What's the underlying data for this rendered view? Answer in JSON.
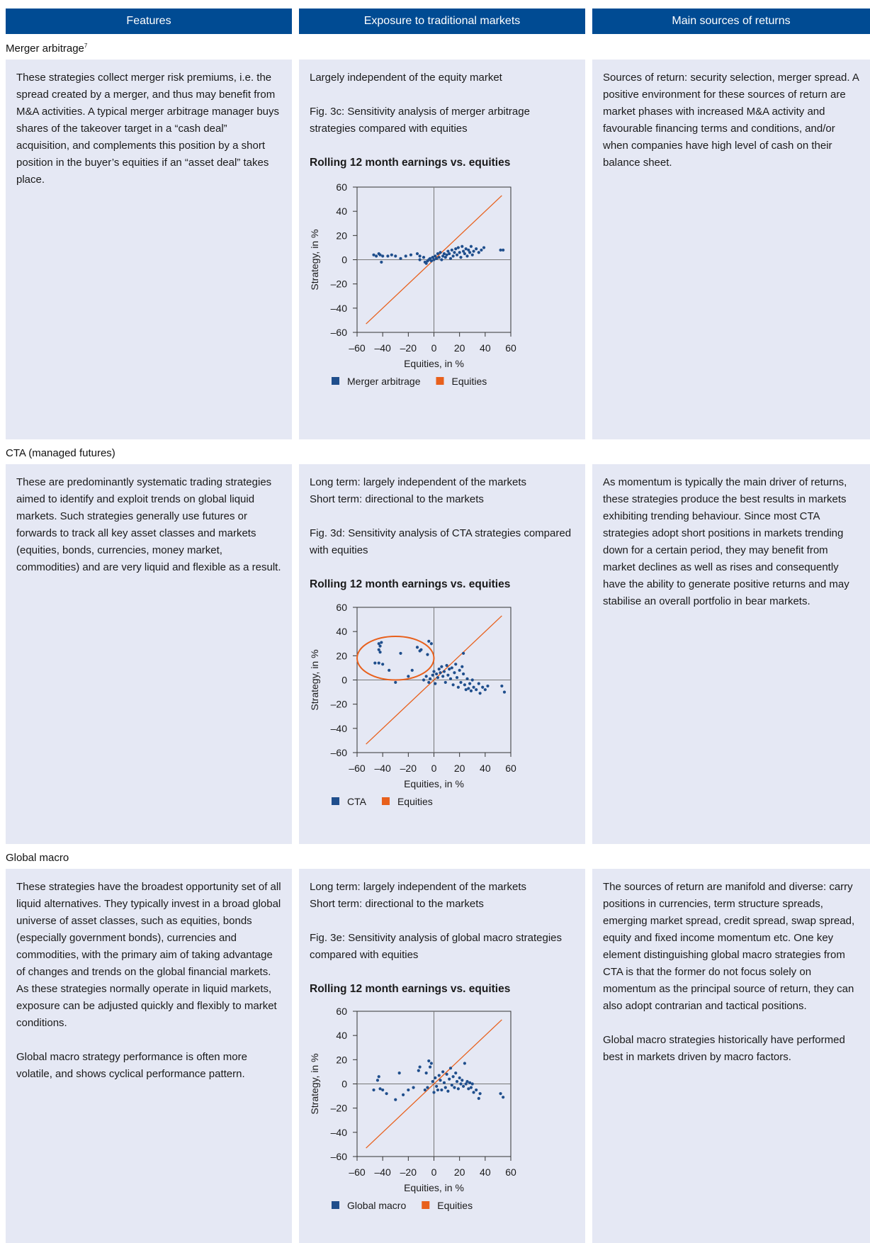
{
  "headers": [
    "Features",
    "Exposure to traditional markets",
    "Main sources of returns"
  ],
  "sections": [
    {
      "title": "Merger arbitrage",
      "title_sup": "7",
      "features": [
        "These strategies collect merger risk premiums, i.e. the spread created by a merger, and thus may benefit from M&A activities. A typical merger arbitrage manager buys shares of the takeover target in a “cash deal” acquisition, and complements this position by a short position in the buyer’s equities if an “asset deal” takes place."
      ],
      "exposure": "Largely independent of the equity market",
      "figure_caption": "Fig. 3c: Sensitivity analysis of merger arbitrage strategies compared with equities",
      "chart_title": "Rolling 12 month earnings vs. equities",
      "sources": [
        "Sources of return: security selection, merger spread. A positive environment for these sources of return are market phases with increased M&A activity and favourable financing terms and conditions, and/or when companies have high level of cash on their balance sheet."
      ]
    },
    {
      "title": "CTA (managed futures)",
      "title_sup": "",
      "features": [
        "These are predominantly systematic trading strategies aimed to identify and exploit trends on global liquid markets. Such strategies generally use futures or forwards to track all key asset classes and markets (equities, bonds, currencies, money market, commodities) and are very liquid and flexible as a result."
      ],
      "exposure": "Long term: largely independent of the markets\nShort term: directional to the markets",
      "figure_caption": "Fig. 3d: Sensitivity analysis of CTA strategies compared with equities",
      "chart_title": "Rolling 12 month earnings vs. equities",
      "sources": [
        "As momentum is typically the main driver of returns, these strategies produce the best results in markets exhibiting trending behaviour. Since most CTA strategies adopt short positions in markets trending down for a certain period, they may benefit from market declines as well as rises and consequently have the ability to generate positive returns and may stabilise an overall portfolio in bear markets."
      ]
    },
    {
      "title": "Global macro",
      "title_sup": "",
      "features": [
        "These strategies have the broadest opportunity set of all liquid alternatives. They typically invest in a broad global universe of asset classes, such as equities, bonds (especially government bonds), currencies and commodities, with the primary aim of taking advantage of changes and trends on the global financial markets. As these strategies normally operate in liquid markets, exposure can be adjusted quickly and flexibly to market conditions.",
        "Global macro strategy performance is often more volatile, and shows cyclical performance pattern."
      ],
      "exposure": "Long term: largely independent of the markets\nShort term: directional to the markets",
      "figure_caption": "Fig. 3e: Sensitivity analysis of global macro strategies compared with equities",
      "chart_title": "Rolling 12 month earnings vs. equities",
      "sources": [
        "The sources of return are manifold and diverse: carry positions in currencies, term structure spreads, emerging market spread, credit spread, swap spread, equity and fixed income momentum etc. One key element distinguishing global macro strategies from CTA is that the former do not focus solely on momentum as the principal source of return, they can also adopt contrarian and tactical positions.",
        "Global macro strategies historically have performed best in markets driven by macro factors."
      ]
    }
  ],
  "colors": {
    "header": "#004b93",
    "panel": "#e5e8f4",
    "points": "#1f4e8c",
    "equities": "#e8601c"
  },
  "chart_data": [
    {
      "type": "scatter",
      "title": "Rolling 12 month earnings vs. equities",
      "xlabel": "Equities, in %",
      "ylabel": "Strategy, in %",
      "xlim": [
        -60,
        60
      ],
      "ylim": [
        -60,
        60
      ],
      "xticks": [
        "–60",
        "–40",
        "–20",
        "0",
        "20",
        "40",
        "60"
      ],
      "yticks": [
        "60",
        "40",
        "20",
        "0",
        "–20",
        "–40",
        "–60"
      ],
      "legend": [
        "Merger arbitrage",
        "Equities"
      ],
      "series": [
        {
          "name": "Merger arbitrage",
          "points": [
            [
              -47,
              4
            ],
            [
              -45,
              3
            ],
            [
              -43,
              5
            ],
            [
              -42,
              4
            ],
            [
              -41,
              -2
            ],
            [
              -40,
              3
            ],
            [
              -36,
              3
            ],
            [
              -33,
              4
            ],
            [
              -30,
              3
            ],
            [
              -26,
              1
            ],
            [
              -22,
              3
            ],
            [
              -18,
              4
            ],
            [
              -13,
              5
            ],
            [
              -11,
              0
            ],
            [
              -11,
              3
            ],
            [
              -8,
              2
            ],
            [
              -7,
              -2
            ],
            [
              -6,
              -3
            ],
            [
              -5,
              -1
            ],
            [
              -4,
              0
            ],
            [
              -3,
              1
            ],
            [
              -2,
              -1
            ],
            [
              -1,
              2
            ],
            [
              0,
              0
            ],
            [
              1,
              3
            ],
            [
              2,
              1
            ],
            [
              3,
              5
            ],
            [
              4,
              2
            ],
            [
              5,
              6
            ],
            [
              6,
              0
            ],
            [
              7,
              3
            ],
            [
              8,
              5
            ],
            [
              9,
              2
            ],
            [
              10,
              4
            ],
            [
              11,
              7
            ],
            [
              12,
              5
            ],
            [
              13,
              1
            ],
            [
              14,
              8
            ],
            [
              15,
              3
            ],
            [
              16,
              6
            ],
            [
              17,
              9
            ],
            [
              18,
              4
            ],
            [
              19,
              10
            ],
            [
              20,
              6
            ],
            [
              21,
              2
            ],
            [
              22,
              11
            ],
            [
              23,
              7
            ],
            [
              24,
              5
            ],
            [
              25,
              9
            ],
            [
              26,
              3
            ],
            [
              27,
              8
            ],
            [
              28,
              6
            ],
            [
              29,
              11
            ],
            [
              30,
              4
            ],
            [
              31,
              7
            ],
            [
              33,
              9
            ],
            [
              35,
              6
            ],
            [
              37,
              8
            ],
            [
              39,
              10
            ],
            [
              52,
              8
            ],
            [
              54,
              8
            ]
          ]
        },
        {
          "name": "Equities",
          "points": [
            [
              -53,
              -53
            ],
            [
              53,
              53
            ]
          ]
        }
      ]
    },
    {
      "type": "scatter",
      "title": "Rolling 12 month earnings vs. equities",
      "xlabel": "Equities, in %",
      "ylabel": "Strategy, in %",
      "xlim": [
        -60,
        60
      ],
      "ylim": [
        -60,
        60
      ],
      "xticks": [
        "–60",
        "–40",
        "–20",
        "0",
        "20",
        "40",
        "60"
      ],
      "yticks": [
        "60",
        "40",
        "20",
        "0",
        "–20",
        "–40",
        "–60"
      ],
      "legend": [
        "CTA",
        "Equities"
      ],
      "annotation": {
        "type": "ellipse",
        "cx": -30,
        "cy": 18,
        "rx": 30,
        "ry": 18
      },
      "series": [
        {
          "name": "CTA",
          "points": [
            [
              -43,
              30
            ],
            [
              -42,
              28
            ],
            [
              -41,
              31
            ],
            [
              -43,
              25
            ],
            [
              -42,
              23
            ],
            [
              -46,
              14
            ],
            [
              -43,
              14
            ],
            [
              -40,
              13
            ],
            [
              -35,
              8
            ],
            [
              -30,
              -2
            ],
            [
              -26,
              22
            ],
            [
              -20,
              3
            ],
            [
              -17,
              8
            ],
            [
              -13,
              27
            ],
            [
              -11,
              24
            ],
            [
              -10,
              25
            ],
            [
              -5,
              21
            ],
            [
              -4,
              32
            ],
            [
              -2,
              30
            ],
            [
              -8,
              0
            ],
            [
              -6,
              3
            ],
            [
              -4,
              -2
            ],
            [
              -3,
              1
            ],
            [
              -1,
              4
            ],
            [
              0,
              7
            ],
            [
              1,
              -3
            ],
            [
              2,
              5
            ],
            [
              3,
              2
            ],
            [
              4,
              9
            ],
            [
              5,
              6
            ],
            [
              6,
              11
            ],
            [
              7,
              3
            ],
            [
              8,
              7
            ],
            [
              9,
              -2
            ],
            [
              10,
              12
            ],
            [
              11,
              4
            ],
            [
              12,
              9
            ],
            [
              13,
              1
            ],
            [
              14,
              10
            ],
            [
              15,
              -4
            ],
            [
              16,
              6
            ],
            [
              17,
              13
            ],
            [
              18,
              2
            ],
            [
              19,
              -6
            ],
            [
              20,
              8
            ],
            [
              21,
              -2
            ],
            [
              22,
              11
            ],
            [
              23,
              5
            ],
            [
              24,
              -4
            ],
            [
              25,
              -8
            ],
            [
              26,
              1
            ],
            [
              27,
              -7
            ],
            [
              28,
              -3
            ],
            [
              29,
              -9
            ],
            [
              30,
              0
            ],
            [
              31,
              -6
            ],
            [
              33,
              -8
            ],
            [
              35,
              -3
            ],
            [
              36,
              -11
            ],
            [
              38,
              -6
            ],
            [
              40,
              -8
            ],
            [
              42,
              -5
            ],
            [
              23,
              22
            ],
            [
              53,
              -5
            ],
            [
              55,
              -10
            ]
          ]
        },
        {
          "name": "Equities",
          "points": [
            [
              -53,
              -53
            ],
            [
              53,
              53
            ]
          ]
        }
      ]
    },
    {
      "type": "scatter",
      "title": "Rolling 12 month earnings vs. equities",
      "xlabel": "Equities, in %",
      "ylabel": "Strategy, in %",
      "xlim": [
        -60,
        60
      ],
      "ylim": [
        -60,
        60
      ],
      "xticks": [
        "–60",
        "–40",
        "–20",
        "0",
        "20",
        "40",
        "60"
      ],
      "yticks": [
        "60",
        "40",
        "20",
        "0",
        "–20",
        "–40",
        "–60"
      ],
      "legend": [
        "Global macro",
        "Equities"
      ],
      "series": [
        {
          "name": "Global macro",
          "points": [
            [
              -47,
              -5
            ],
            [
              -44,
              3
            ],
            [
              -43,
              6
            ],
            [
              -42,
              -4
            ],
            [
              -40,
              -5
            ],
            [
              -37,
              -8
            ],
            [
              -30,
              -13
            ],
            [
              -27,
              9
            ],
            [
              -24,
              -9
            ],
            [
              -20,
              -5
            ],
            [
              -16,
              -3
            ],
            [
              -12,
              11
            ],
            [
              -11,
              14
            ],
            [
              -7,
              -5
            ],
            [
              -6,
              9
            ],
            [
              -5,
              -3
            ],
            [
              -4,
              19
            ],
            [
              -3,
              14
            ],
            [
              -2,
              17
            ],
            [
              -1,
              2
            ],
            [
              0,
              -7
            ],
            [
              1,
              5
            ],
            [
              2,
              -2
            ],
            [
              3,
              -5
            ],
            [
              4,
              7
            ],
            [
              5,
              3
            ],
            [
              6,
              -5
            ],
            [
              7,
              10
            ],
            [
              8,
              1
            ],
            [
              9,
              -3
            ],
            [
              10,
              8
            ],
            [
              11,
              -6
            ],
            [
              12,
              4
            ],
            [
              13,
              13
            ],
            [
              14,
              -1
            ],
            [
              15,
              6
            ],
            [
              16,
              -3
            ],
            [
              17,
              9
            ],
            [
              18,
              2
            ],
            [
              19,
              -4
            ],
            [
              20,
              5
            ],
            [
              21,
              0
            ],
            [
              22,
              3
            ],
            [
              23,
              -2
            ],
            [
              24,
              17
            ],
            [
              25,
              0
            ],
            [
              26,
              2
            ],
            [
              27,
              -4
            ],
            [
              28,
              1
            ],
            [
              29,
              -3
            ],
            [
              30,
              0
            ],
            [
              31,
              -7
            ],
            [
              33,
              -5
            ],
            [
              35,
              -12
            ],
            [
              36,
              -8
            ],
            [
              52,
              -8
            ],
            [
              54,
              -11
            ]
          ]
        },
        {
          "name": "Equities",
          "points": [
            [
              -53,
              -53
            ],
            [
              53,
              53
            ]
          ]
        }
      ]
    }
  ]
}
